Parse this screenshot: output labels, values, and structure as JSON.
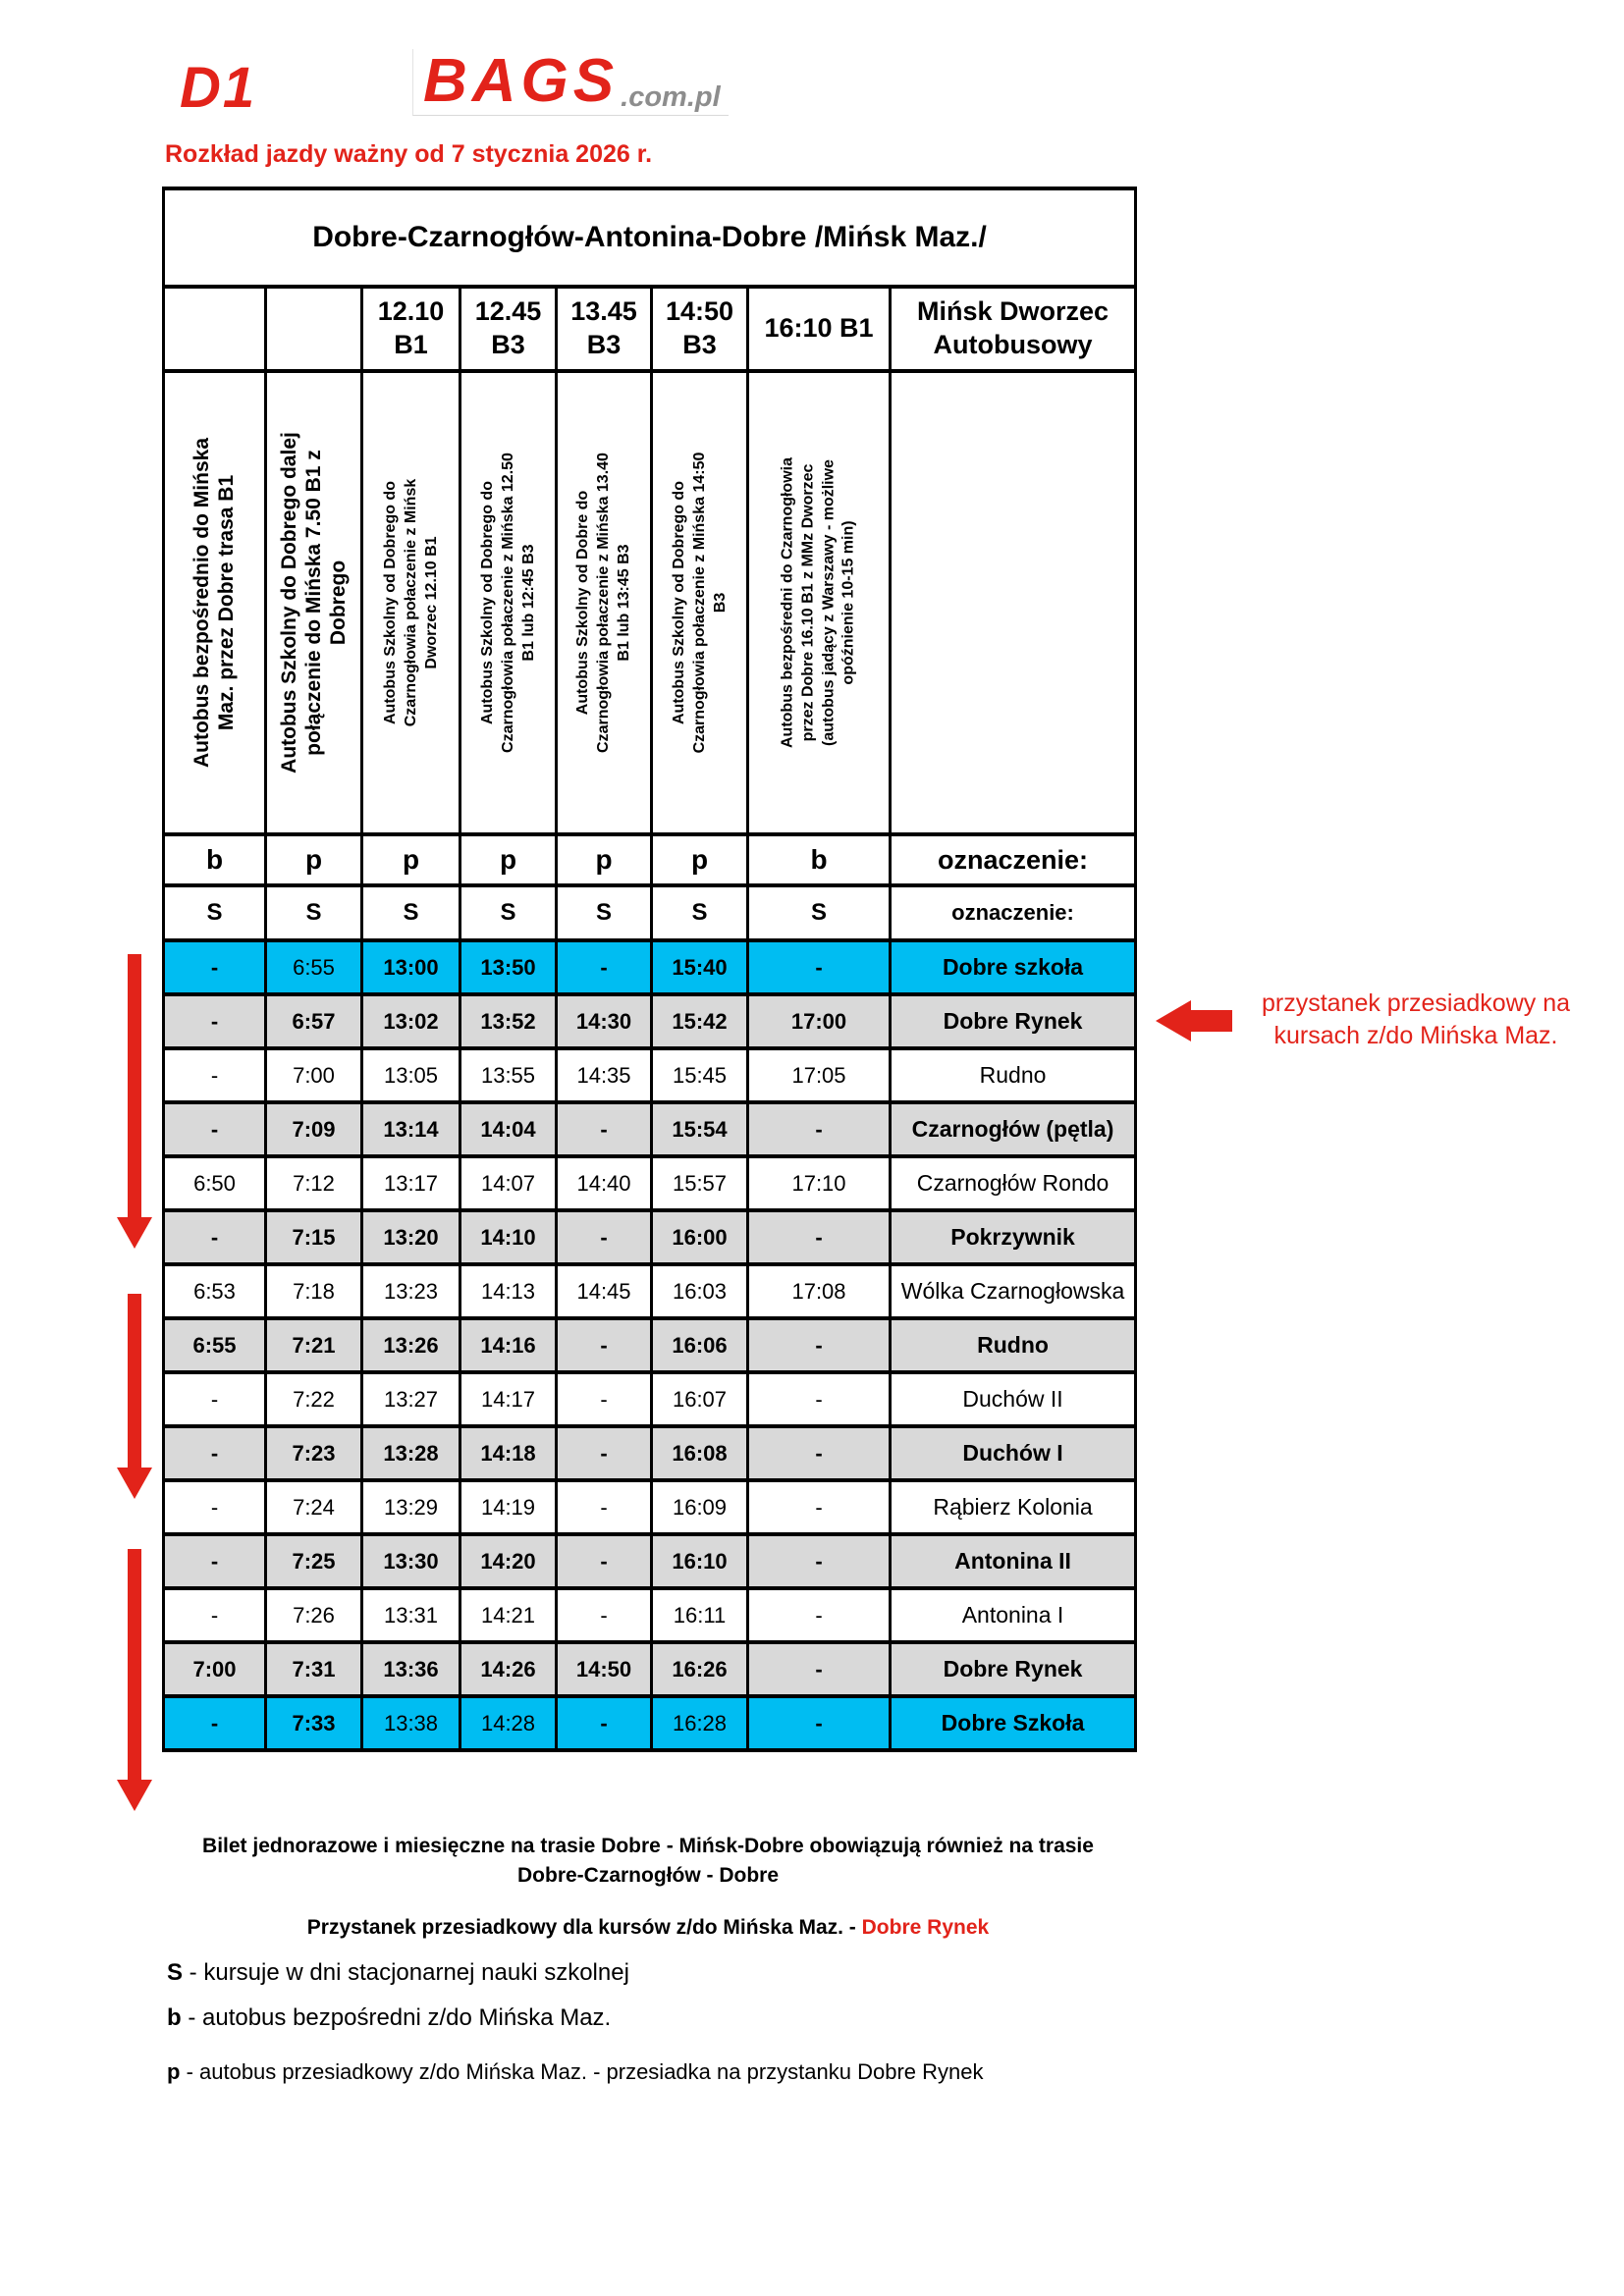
{
  "header": {
    "route_code": "D1",
    "logo_brand": "BAGS",
    "logo_suffix": ".com.pl",
    "validity_note": "Rozkład jazdy ważny  od 7 stycznia 2026 r."
  },
  "colors": {
    "accent_red": "#e2231a",
    "cyan_row": "#00bdf2",
    "gray_row": "#d9d9d9",
    "logo_gray": "#8d8d8d"
  },
  "table": {
    "title": "Dobre-Czarnogłów-Antonina-Dobre  /Mińsk Maz./",
    "departure_times": [
      "",
      "",
      "12.10\nB1",
      "12.45\nB3",
      "13.45\nB3",
      "14:50\nB3",
      "16:10 B1",
      "Mińsk Dworzec\nAutobusowy"
    ],
    "course_notes": [
      {
        "text": "Autobus bezpośrednio do Mińska\nMaz. przez Dobre trasa B1",
        "size": "large"
      },
      {
        "text": "Autobus Szkolny do Dobrego dalej\npołączenie do Mińska 7.50 B1 z\nDobrego",
        "size": "large"
      },
      {
        "text": "Autobus Szkolny od Dobrego do\nCzarnogłowia połaczenie z Mińsk\nDworzec 12.10 B1",
        "size": "small"
      },
      {
        "text": "Autobus Szkolny od Dobrego do\nCzarnogłowia połaczenie z Mińska 12.50\nB1 lub 12:45 B3",
        "size": "small"
      },
      {
        "text": "Autobus Szkolny od Dobre do\nCzarnogłowia połaczenie z Mińska 13.40\nB1 lub  13:45 B3",
        "size": "small"
      },
      {
        "text": "Autobus Szkolny od Dobrego do\nCzarnogłowia połaczenie z Mińska 14:50\nB3",
        "size": "small"
      },
      {
        "text": "Autobus bezpośredni do Czarnogłowia\nprzez Dobre 16.10 B1  z MMz Dworzec\n(autobus jadący z Warszawy - możliwe\nopóźnienie 10-15 min)",
        "size": "small"
      },
      {
        "text": "",
        "size": "empty"
      }
    ],
    "type_row": {
      "values": [
        "b",
        "p",
        "p",
        "p",
        "p",
        "p",
        "b"
      ],
      "label": "oznaczenie:"
    },
    "school_row": {
      "values": [
        "S",
        "S",
        "S",
        "S",
        "S",
        "S",
        "S"
      ],
      "label": "oznaczenie:"
    },
    "rows": [
      {
        "variant": "cyan",
        "times": [
          "-",
          "6:55",
          "13:00",
          "13:50",
          "-",
          "15:40",
          "-"
        ],
        "stop": "Dobre szkoła",
        "normal_cells": [
          1
        ]
      },
      {
        "variant": "gray",
        "times": [
          "-",
          "6:57",
          "13:02",
          "13:52",
          "14:30",
          "15:42",
          "17:00"
        ],
        "stop": "Dobre Rynek",
        "normal_cells": []
      },
      {
        "variant": "white",
        "times": [
          "-",
          "7:00",
          "13:05",
          "13:55",
          "14:35",
          "15:45",
          "17:05"
        ],
        "stop": "Rudno",
        "normal_cells": []
      },
      {
        "variant": "gray",
        "times": [
          "-",
          "7:09",
          "13:14",
          "14:04",
          "-",
          "15:54",
          "-"
        ],
        "stop": "Czarnogłów (pętla)",
        "normal_cells": []
      },
      {
        "variant": "white",
        "times": [
          "6:50",
          "7:12",
          "13:17",
          "14:07",
          "14:40",
          "15:57",
          "17:10"
        ],
        "stop": "Czarnogłów Rondo",
        "normal_cells": []
      },
      {
        "variant": "gray",
        "times": [
          "-",
          "7:15",
          "13:20",
          "14:10",
          "-",
          "16:00",
          "-"
        ],
        "stop": "Pokrzywnik",
        "normal_cells": []
      },
      {
        "variant": "white",
        "times": [
          "6:53",
          "7:18",
          "13:23",
          "14:13",
          "14:45",
          "16:03",
          "17:08"
        ],
        "stop": "Wólka Czarnogłowska",
        "normal_cells": []
      },
      {
        "variant": "gray",
        "times": [
          "6:55",
          "7:21",
          "13:26",
          "14:16",
          "-",
          "16:06",
          "-"
        ],
        "stop": "Rudno",
        "normal_cells": []
      },
      {
        "variant": "white",
        "times": [
          "-",
          "7:22",
          "13:27",
          "14:17",
          "-",
          "16:07",
          "-"
        ],
        "stop": "Duchów II",
        "normal_cells": []
      },
      {
        "variant": "gray",
        "times": [
          "-",
          "7:23",
          "13:28",
          "14:18",
          "-",
          "16:08",
          "-"
        ],
        "stop": "Duchów I",
        "normal_cells": []
      },
      {
        "variant": "white",
        "times": [
          "-",
          "7:24",
          "13:29",
          "14:19",
          "-",
          "16:09",
          "-"
        ],
        "stop": "Rąbierz Kolonia",
        "normal_cells": []
      },
      {
        "variant": "gray",
        "times": [
          "-",
          "7:25",
          "13:30",
          "14:20",
          "-",
          "16:10",
          "-"
        ],
        "stop": "Antonina II",
        "normal_cells": []
      },
      {
        "variant": "white",
        "times": [
          "-",
          "7:26",
          "13:31",
          "14:21",
          "-",
          "16:11",
          "-"
        ],
        "stop": "Antonina I",
        "normal_cells": []
      },
      {
        "variant": "gray",
        "times": [
          "7:00",
          "7:31",
          "13:36",
          "14:26",
          "14:50",
          "16:26",
          "-"
        ],
        "stop": "Dobre Rynek",
        "normal_cells": []
      },
      {
        "variant": "cyan",
        "times": [
          "-",
          "7:33",
          "13:38",
          "14:28",
          "-",
          "16:28",
          "-"
        ],
        "stop": "Dobre Szkoła",
        "normal_cells": [
          2,
          3,
          5
        ]
      }
    ]
  },
  "annotations": {
    "transfer_stop_note": "przystanek przesiadkowy na\nkursach z/do Mińska Maz."
  },
  "notes": {
    "ticket_info": "Bilet jednorazowe i miesięczne na trasie Dobre - Mińsk-Dobre obowiązują również na trasie\nDobre-Czarnogłów - Dobre",
    "transfer_info_prefix": "Przystanek przesiadkowy dla kursów z/do Mińska Maz. - ",
    "transfer_info_highlight": "Dobre Rynek",
    "legend": [
      {
        "symbol": "S",
        "text": " - kursuje w dni stacjonarnej nauki szkolnej"
      },
      {
        "symbol": "b",
        "text": " - autobus bezpośredni z/do Mińska Maz."
      },
      {
        "symbol": "p",
        "text": " - autobus przesiadkowy z/do Mińska Maz. - przesiadka na przystanku Dobre Rynek"
      }
    ]
  }
}
